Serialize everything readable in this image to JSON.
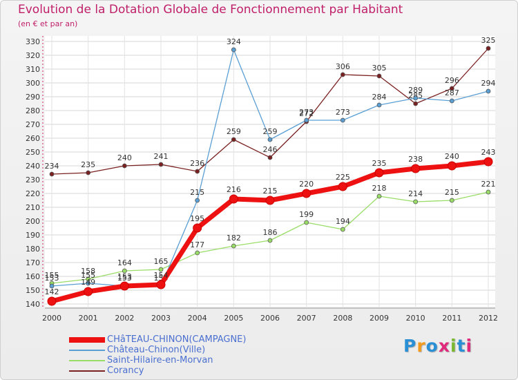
{
  "title": "Evolution de la Dotation Globale de Fonctionnement par Habitant",
  "subtitle": "(en € et par an)",
  "logo": {
    "text": "Proxiti",
    "colors": [
      "#2a8fd4",
      "#f29a1d",
      "#2a8fd4",
      "#e0297a",
      "#7ab832",
      "#2a8fd4",
      "#e0297a"
    ]
  },
  "chart_data": {
    "type": "line",
    "x": [
      "2000",
      "2001",
      "2002",
      "2003",
      "2004",
      "2005",
      "2006",
      "2007",
      "2008",
      "2009",
      "2010",
      "2011",
      "2012"
    ],
    "ylim": [
      140,
      330
    ],
    "yticks": [
      140,
      150,
      160,
      170,
      180,
      190,
      200,
      210,
      220,
      230,
      240,
      250,
      260,
      270,
      280,
      290,
      300,
      310,
      320,
      330
    ],
    "grid": true,
    "legend_position": "bottom-left",
    "series": [
      {
        "name": "CHâTEAU-CHINON(CAMPAGNE)",
        "color": "#ee1111",
        "values": [
          142,
          149,
          153,
          154,
          195,
          216,
          215,
          220,
          225,
          235,
          238,
          240,
          243
        ]
      },
      {
        "name": "Château-Chinon(Ville)",
        "color": "#5a9fd4",
        "values": [
          153,
          155,
          153,
          153,
          215,
          324,
          259,
          273,
          273,
          284,
          289,
          287,
          294
        ]
      },
      {
        "name": "Saint-Hilaire-en-Morvan",
        "color": "#99dd66",
        "values": [
          155,
          158,
          164,
          165,
          177,
          182,
          186,
          199,
          194,
          218,
          214,
          215,
          221
        ]
      },
      {
        "name": "Corancy",
        "color": "#7a2020",
        "values": [
          234,
          235,
          240,
          241,
          236,
          259,
          246,
          272,
          306,
          305,
          285,
          296,
          325
        ]
      }
    ]
  }
}
